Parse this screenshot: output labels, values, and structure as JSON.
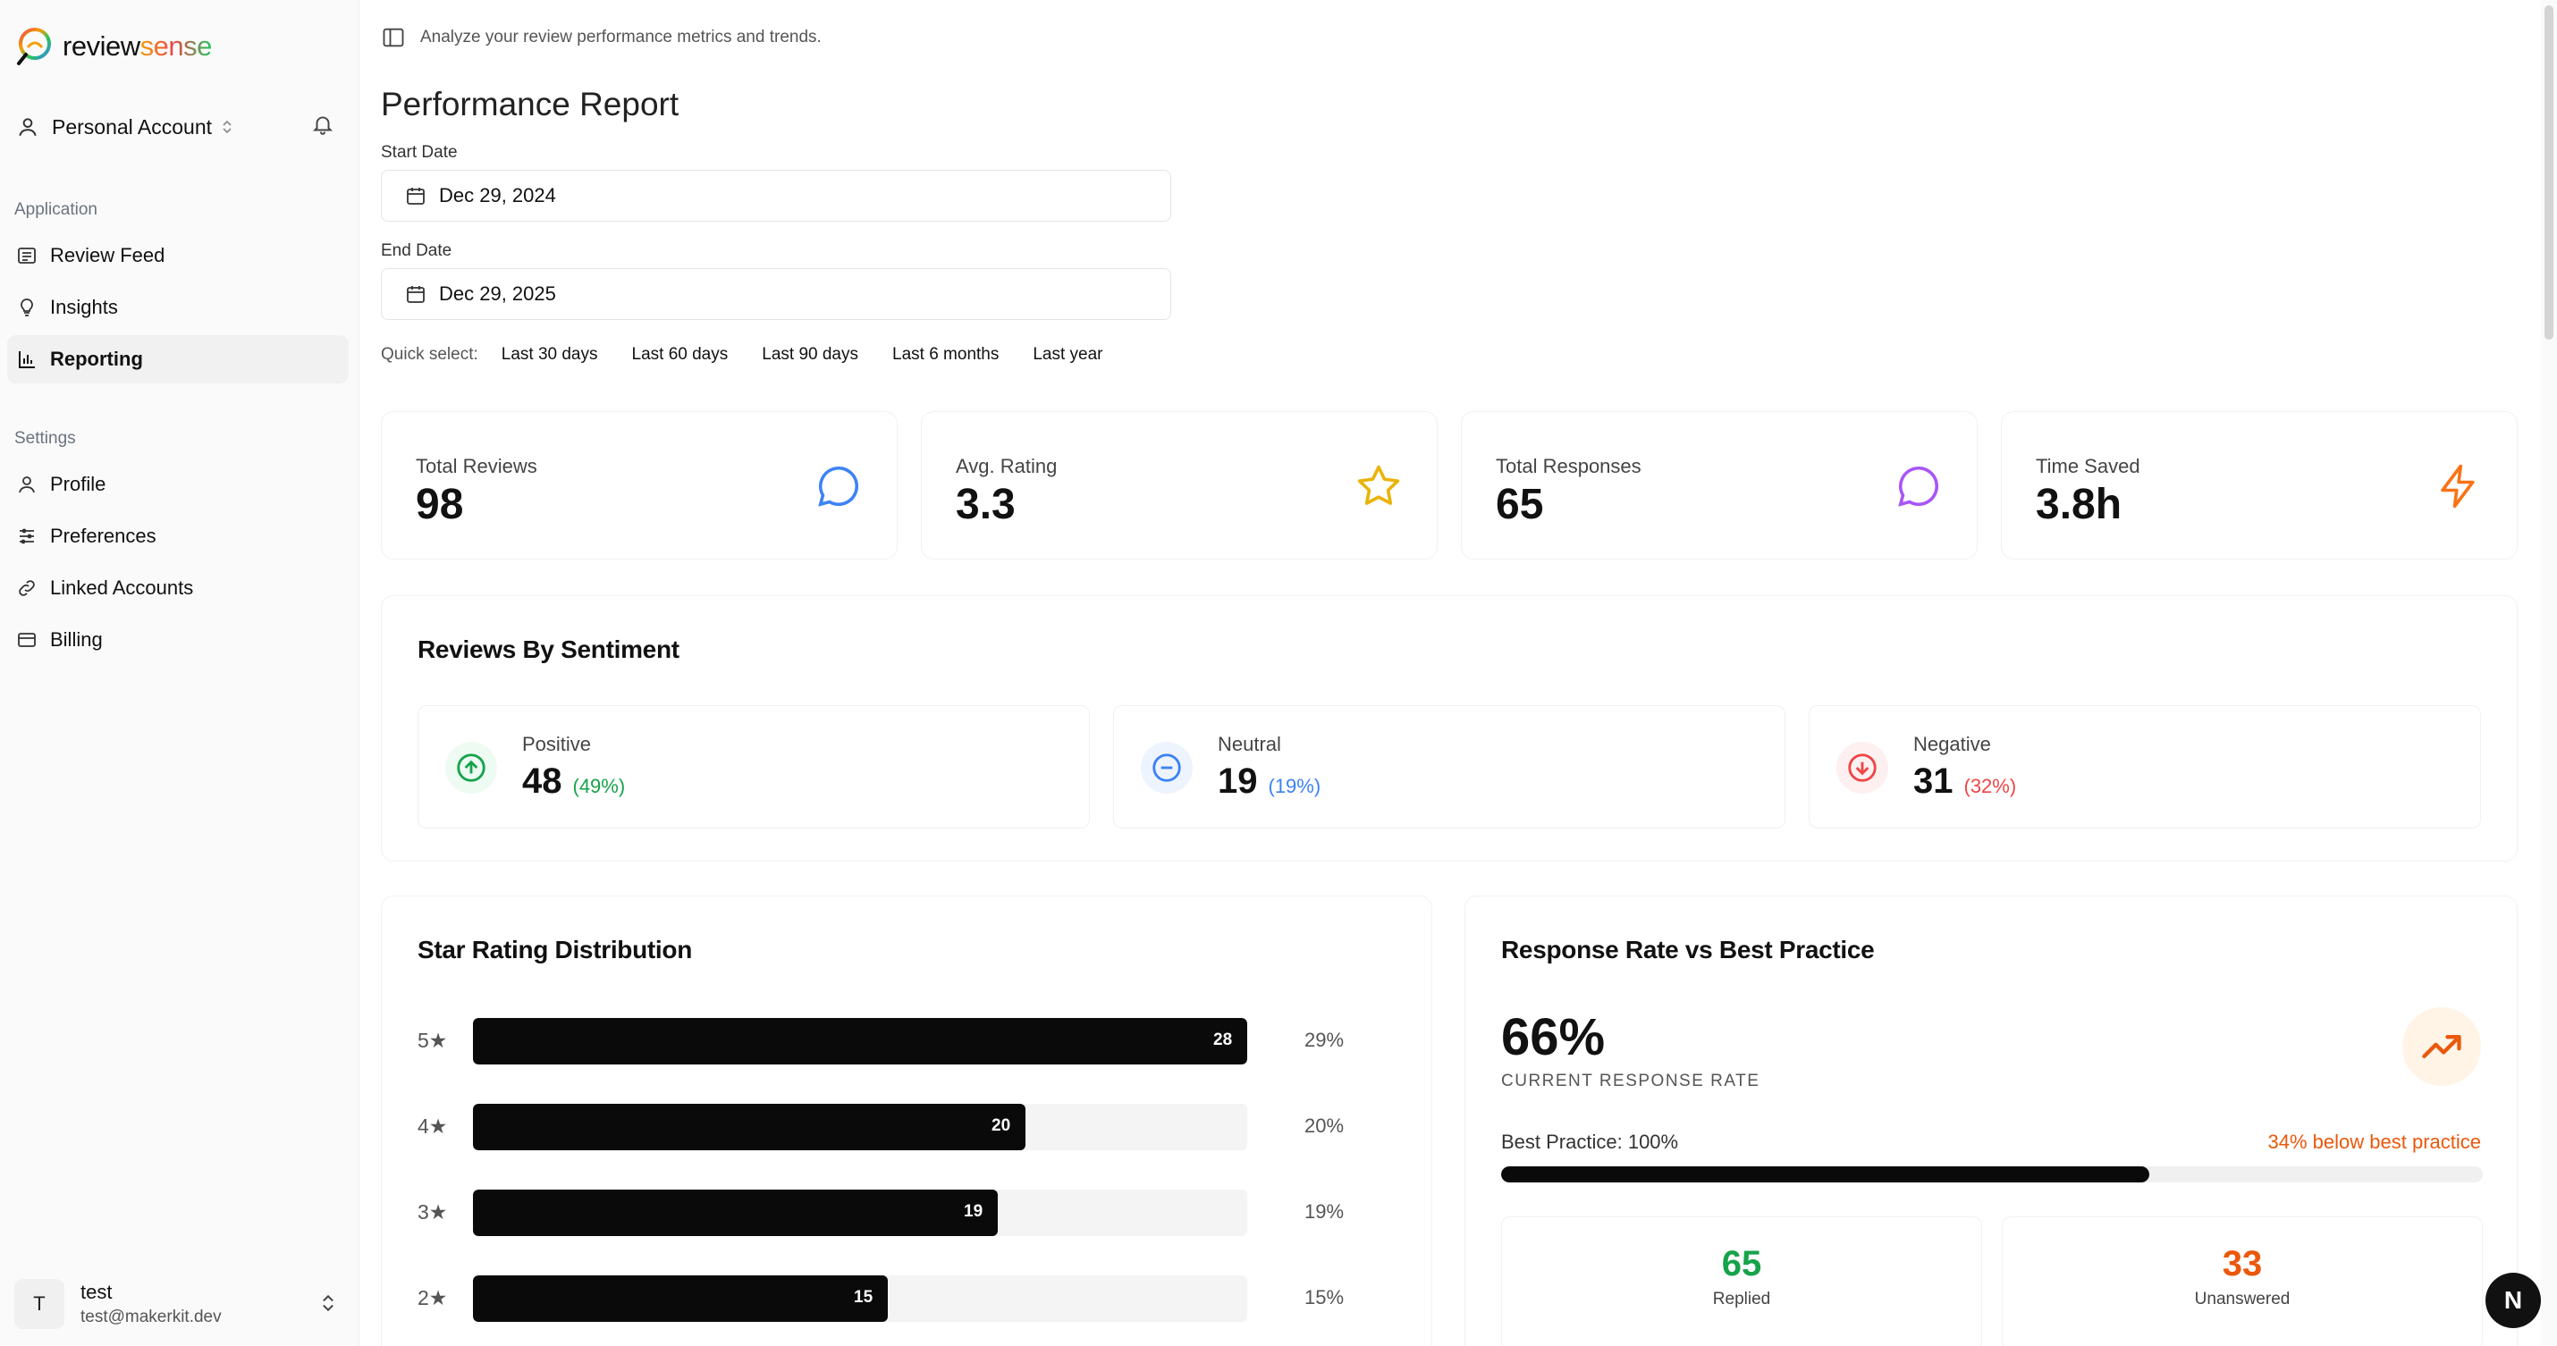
{
  "brand": {
    "name_part1": "review",
    "name_part2": "sense"
  },
  "sidebar": {
    "account_label": "Personal Account",
    "section_application": "Application",
    "section_settings": "Settings",
    "app_items": [
      {
        "label": "Review Feed",
        "icon": "list-icon"
      },
      {
        "label": "Insights",
        "icon": "lightbulb-icon"
      },
      {
        "label": "Reporting",
        "icon": "bar-chart-icon",
        "active": true
      }
    ],
    "settings_items": [
      {
        "label": "Profile",
        "icon": "user-icon"
      },
      {
        "label": "Preferences",
        "icon": "sliders-icon"
      },
      {
        "label": "Linked Accounts",
        "icon": "link-icon"
      },
      {
        "label": "Billing",
        "icon": "credit-card-icon"
      }
    ],
    "user": {
      "initial": "T",
      "name": "test",
      "email": "test@makerkit.dev"
    }
  },
  "header": {
    "description": "Analyze your review performance metrics and trends."
  },
  "report": {
    "title": "Performance Report",
    "start_label": "Start Date",
    "start_value": "Dec 29, 2024",
    "end_label": "End Date",
    "end_value": "Dec 29, 2025",
    "quick_label": "Quick select:",
    "quick_options": [
      "Last 30 days",
      "Last 60 days",
      "Last 90 days",
      "Last 6 months",
      "Last year"
    ]
  },
  "stats": [
    {
      "label": "Total Reviews",
      "value": "98",
      "icon": "message-circle-icon",
      "color": "#3b82f6"
    },
    {
      "label": "Avg. Rating",
      "value": "3.3",
      "icon": "star-icon",
      "color": "#eab308"
    },
    {
      "label": "Total Responses",
      "value": "65",
      "icon": "message-circle-icon",
      "color": "#a855f7"
    },
    {
      "label": "Time Saved",
      "value": "3.8h",
      "icon": "zap-icon",
      "color": "#f97316"
    }
  ],
  "sentiment": {
    "title": "Reviews By Sentiment",
    "items": [
      {
        "label": "Positive",
        "value": "48",
        "pct": "(49%)",
        "color": "#16a34a",
        "bg": "#eefbf2"
      },
      {
        "label": "Neutral",
        "value": "19",
        "pct": "(19%)",
        "color": "#3b82f6",
        "bg": "#eef4fe"
      },
      {
        "label": "Negative",
        "value": "31",
        "pct": "(32%)",
        "color": "#ef4444",
        "bg": "#fef0f0"
      }
    ]
  },
  "star_distribution": {
    "title": "Star Rating Distribution",
    "rows": [
      {
        "label": "5★",
        "count": "28",
        "pct": "29%",
        "fraction": 1.0
      },
      {
        "label": "4★",
        "count": "20",
        "pct": "20%",
        "fraction": 0.714
      },
      {
        "label": "3★",
        "count": "19",
        "pct": "19%",
        "fraction": 0.678
      },
      {
        "label": "2★",
        "count": "15",
        "pct": "15%",
        "fraction": 0.536
      }
    ]
  },
  "response_rate": {
    "title": "Response Rate vs Best Practice",
    "value": "66%",
    "caption": "CURRENT RESPONSE RATE",
    "best_practice": "Best Practice: 100%",
    "warning": "34% below best practice",
    "progress": 0.66,
    "replied_value": "65",
    "replied_label": "Replied",
    "replied_color": "#16a34a",
    "unanswered_value": "33",
    "unanswered_label": "Unanswered",
    "unanswered_color": "#ea580c"
  },
  "dev_badge": "N"
}
